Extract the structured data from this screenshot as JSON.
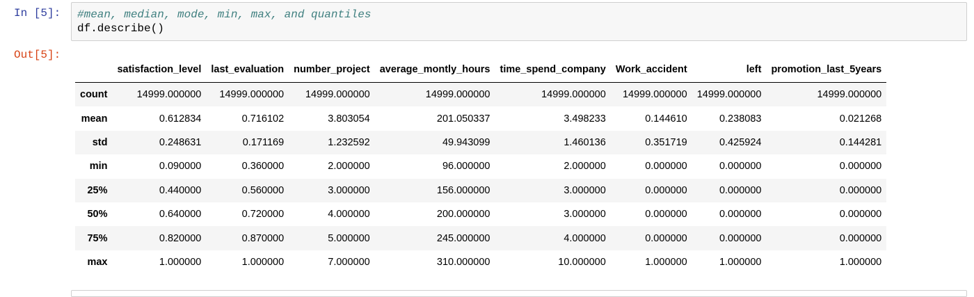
{
  "cell": {
    "in_prompt": "In [5]:",
    "out_prompt": "Out[5]:",
    "code_comment": "#mean, median, mode, min, max, and quantiles",
    "code_line": "df.describe()"
  },
  "table": {
    "index_header": "",
    "columns": [
      "satisfaction_level",
      "last_evaluation",
      "number_project",
      "average_montly_hours",
      "time_spend_company",
      "Work_accident",
      "left",
      "promotion_last_5years"
    ],
    "rows": [
      {
        "label": "count",
        "values": [
          "14999.000000",
          "14999.000000",
          "14999.000000",
          "14999.000000",
          "14999.000000",
          "14999.000000",
          "14999.000000",
          "14999.000000"
        ]
      },
      {
        "label": "mean",
        "values": [
          "0.612834",
          "0.716102",
          "3.803054",
          "201.050337",
          "3.498233",
          "0.144610",
          "0.238083",
          "0.021268"
        ]
      },
      {
        "label": "std",
        "values": [
          "0.248631",
          "0.171169",
          "1.232592",
          "49.943099",
          "1.460136",
          "0.351719",
          "0.425924",
          "0.144281"
        ]
      },
      {
        "label": "min",
        "values": [
          "0.090000",
          "0.360000",
          "2.000000",
          "96.000000",
          "2.000000",
          "0.000000",
          "0.000000",
          "0.000000"
        ]
      },
      {
        "label": "25%",
        "values": [
          "0.440000",
          "0.560000",
          "3.000000",
          "156.000000",
          "3.000000",
          "0.000000",
          "0.000000",
          "0.000000"
        ]
      },
      {
        "label": "50%",
        "values": [
          "0.640000",
          "0.720000",
          "4.000000",
          "200.000000",
          "3.000000",
          "0.000000",
          "0.000000",
          "0.000000"
        ]
      },
      {
        "label": "75%",
        "values": [
          "0.820000",
          "0.870000",
          "5.000000",
          "245.000000",
          "4.000000",
          "0.000000",
          "0.000000",
          "0.000000"
        ]
      },
      {
        "label": "max",
        "values": [
          "1.000000",
          "1.000000",
          "7.000000",
          "310.000000",
          "10.000000",
          "1.000000",
          "1.000000",
          "1.000000"
        ]
      }
    ]
  }
}
